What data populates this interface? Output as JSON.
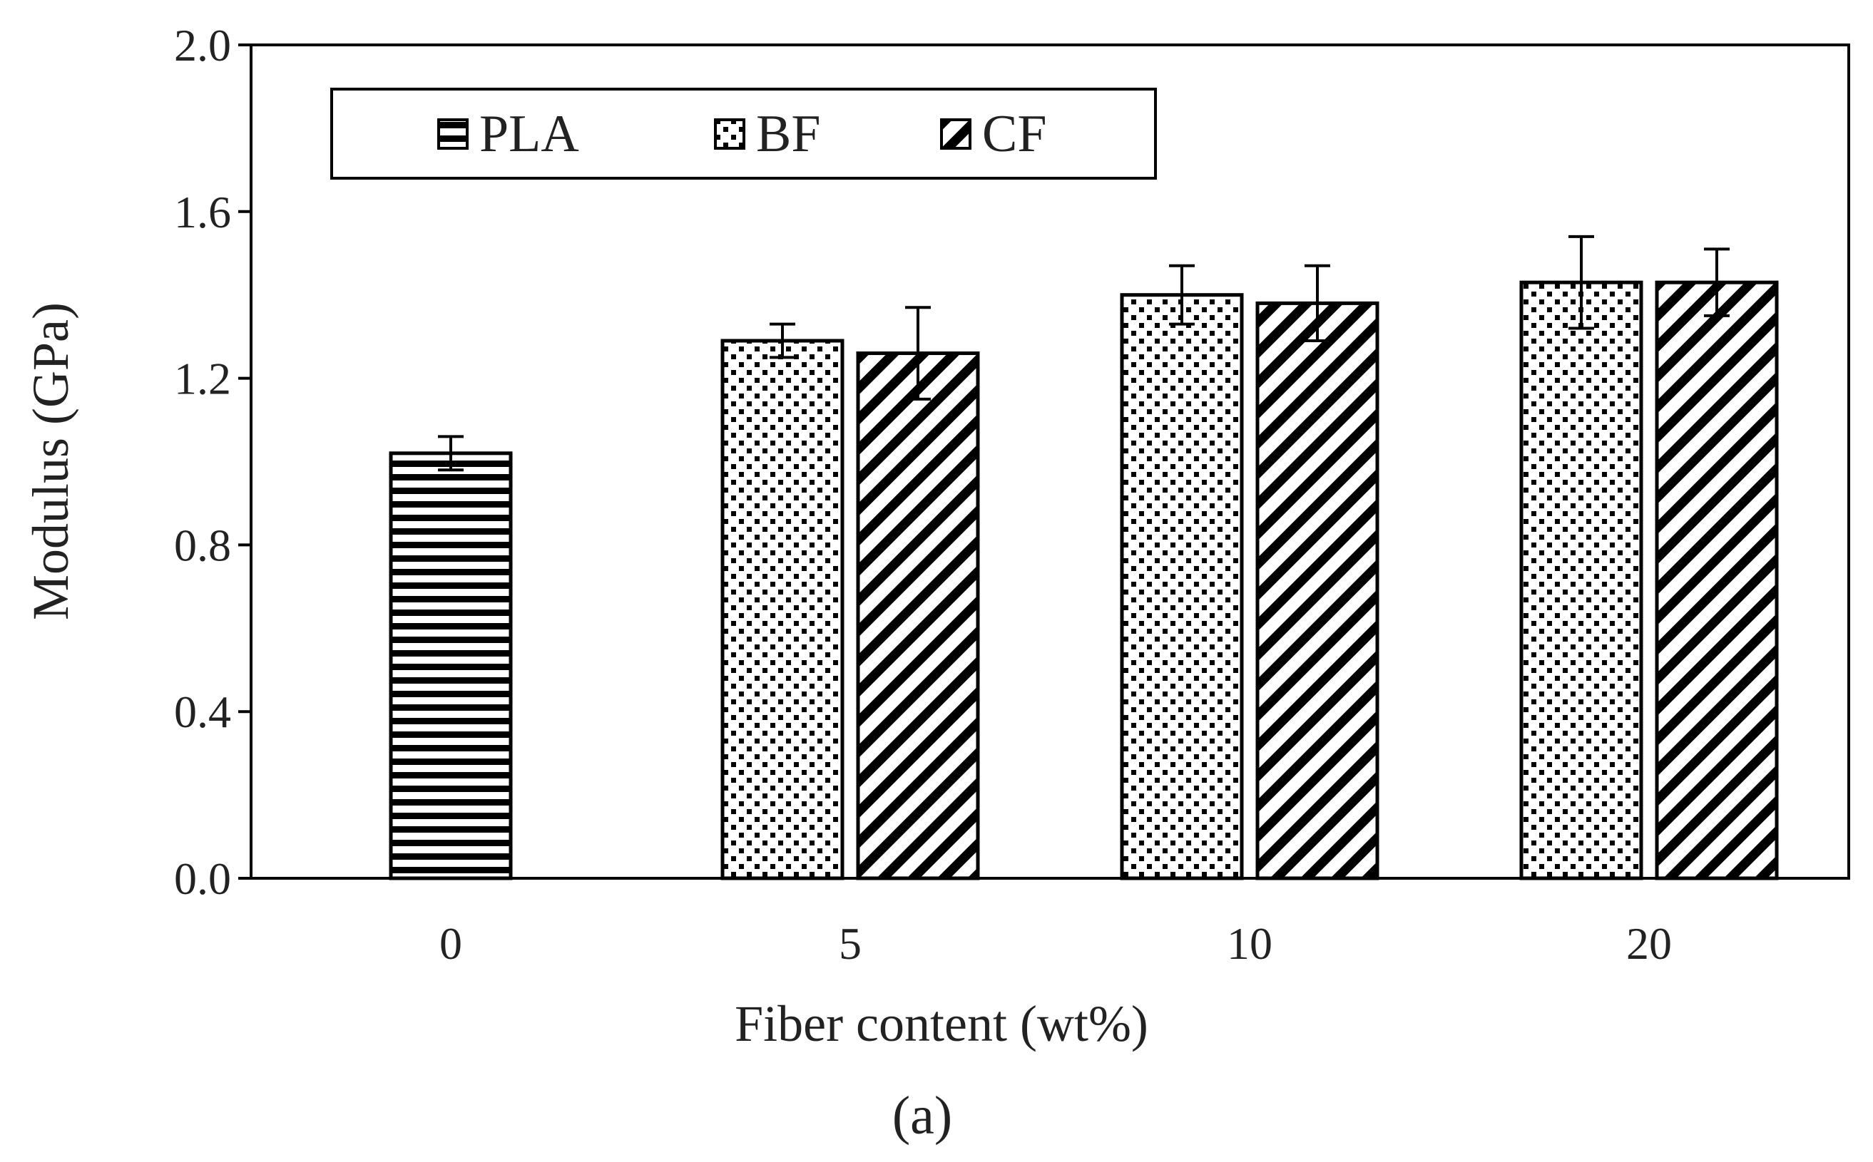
{
  "chart_data": {
    "type": "bar",
    "xlabel": "Fiber content (wt%)",
    "ylabel": "Modulus (GPa)",
    "panel_label": "(a)",
    "categories": [
      "0",
      "5",
      "10",
      "20"
    ],
    "ylim": [
      0.0,
      2.0
    ],
    "yticks": [
      0.0,
      0.4,
      0.8,
      1.2,
      1.6,
      2.0
    ],
    "ytick_labels": [
      "0.0",
      "0.4",
      "0.8",
      "1.2",
      "1.6",
      "2.0"
    ],
    "grid": false,
    "legend_position": "top-left",
    "series": [
      {
        "name": "PLA",
        "pattern": "horizontal-lines",
        "values": [
          1.02,
          null,
          null,
          null
        ],
        "errors": [
          0.04,
          null,
          null,
          null
        ]
      },
      {
        "name": "BF",
        "pattern": "dots",
        "values": [
          null,
          1.29,
          1.4,
          1.43
        ],
        "errors": [
          null,
          0.04,
          0.07,
          0.11
        ]
      },
      {
        "name": "CF",
        "pattern": "diagonal-lines",
        "values": [
          null,
          1.26,
          1.38,
          1.43
        ],
        "errors": [
          null,
          0.11,
          0.09,
          0.08
        ]
      }
    ],
    "colors": {
      "bar_stroke": "#000000",
      "bar_fill": "#ffffff",
      "text": "#222222"
    }
  }
}
